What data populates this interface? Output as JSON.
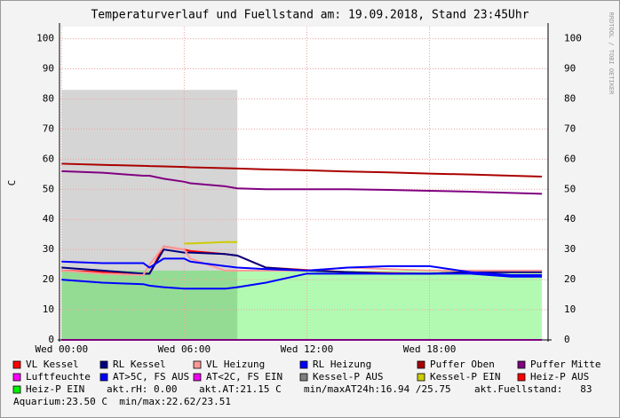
{
  "chart_data": {
    "type": "line",
    "title": "Temperaturverlauf und Fuellstand am: 19.09.2018, Stand 23:45Uhr",
    "y_label": "C",
    "watermark": "RRDTOOL / TOBI OETIKER",
    "x": [
      0,
      2,
      4,
      4.3,
      5,
      6,
      6.3,
      8,
      8.6,
      10,
      12,
      14,
      16,
      18,
      20,
      22,
      23.5
    ],
    "xlim": [
      -0.1,
      23.8
    ],
    "xticks": [
      {
        "value": 0,
        "label": "Wed 00:00"
      },
      {
        "value": 6,
        "label": "Wed 06:00"
      },
      {
        "value": 12,
        "label": "Wed 12:00"
      },
      {
        "value": 18,
        "label": "Wed 18:00"
      }
    ],
    "ylim": [
      0,
      104
    ],
    "yticks": [
      0,
      10,
      20,
      30,
      40,
      50,
      60,
      70,
      80,
      90,
      100
    ],
    "grid": true,
    "series": [
      {
        "name": "VL Kessel",
        "color": "#ff0000",
        "style": "line",
        "values": [
          23,
          22.5,
          22,
          22,
          31,
          30,
          29.5,
          28.5,
          28,
          24,
          23.2,
          22.5,
          22.2,
          22,
          22.5,
          22.5,
          22.5
        ]
      },
      {
        "name": "RL Kessel",
        "color": "#000080",
        "style": "line",
        "values": [
          24,
          23,
          22,
          22,
          30,
          29,
          29,
          28.5,
          28,
          24,
          23,
          22.5,
          22,
          22,
          22.5,
          22.5,
          22.5
        ]
      },
      {
        "name": "VL Heizung",
        "color": "#ff9999",
        "style": "line",
        "values": [
          23,
          22,
          21.5,
          25,
          31,
          30,
          27,
          23,
          23,
          23,
          23,
          24,
          23.5,
          23,
          23,
          23,
          23
        ]
      },
      {
        "name": "RL Heizung",
        "color": "#0000ff",
        "style": "line",
        "values": [
          26,
          25.5,
          25.5,
          24,
          27,
          27,
          26,
          24.5,
          24,
          23.5,
          23,
          24,
          24.5,
          24.5,
          22.5,
          21.5,
          21.5
        ]
      },
      {
        "name": "Puffer Oben",
        "color": "#aa0000",
        "style": "line",
        "values": [
          58.5,
          58.1,
          57.8,
          57.7,
          57.6,
          57.4,
          57.3,
          57,
          56.9,
          56.6,
          56.3,
          55.9,
          55.6,
          55.2,
          54.9,
          54.5,
          54.2
        ]
      },
      {
        "name": "Puffer Mitte",
        "color": "#800080",
        "style": "line",
        "values": [
          56,
          55.5,
          54.5,
          54.5,
          53.5,
          52.5,
          52,
          51,
          50.3,
          50,
          50,
          50,
          49.8,
          49.5,
          49.2,
          48.8,
          48.5
        ]
      },
      {
        "name": "Luftfeuchte",
        "color": "#ff00ff",
        "style": "line",
        "values": [
          0,
          0,
          0,
          0,
          0,
          0,
          0,
          0,
          0,
          0,
          0,
          0,
          0,
          0,
          0,
          0,
          0
        ]
      },
      {
        "name": "AT>5C, FS AUS",
        "color": "#0000ff",
        "style": "line",
        "values": [
          20,
          19,
          18.5,
          18,
          17.5,
          17,
          17,
          17,
          17.5,
          19,
          22,
          22,
          22,
          22,
          22,
          21,
          21
        ]
      },
      {
        "name": "AT<2C, FS EIN",
        "color": "#ee00ee",
        "style": "line",
        "values": [
          null,
          null,
          null,
          null,
          null,
          null,
          null,
          null,
          null,
          null,
          null,
          null,
          null,
          null,
          null,
          null,
          null
        ]
      },
      {
        "name": "Kessel-P AUS",
        "color": "#808080",
        "style": "area",
        "values": [
          83,
          83,
          83,
          83,
          83,
          83,
          83,
          83,
          83,
          null,
          null,
          null,
          null,
          null,
          null,
          null,
          null
        ]
      },
      {
        "name": "Kessel-P EIN",
        "color": "#cccc00",
        "style": "line",
        "values": [
          null,
          null,
          null,
          null,
          null,
          32,
          32,
          32.5,
          32.5,
          null,
          null,
          null,
          null,
          null,
          null,
          null,
          null
        ]
      },
      {
        "name": "Heiz-P AUS",
        "color": "#ff0000",
        "style": "line",
        "values": [
          null,
          null,
          null,
          null,
          null,
          null,
          null,
          null,
          null,
          null,
          null,
          null,
          null,
          null,
          null,
          null,
          null
        ]
      },
      {
        "name": "Heiz-P EIN",
        "color": "#00ee00",
        "style": "area",
        "values": [
          23,
          23,
          23,
          23,
          23,
          23,
          23,
          23,
          23,
          23,
          23,
          23,
          23,
          23,
          23,
          23,
          23
        ]
      }
    ],
    "annotations": [
      "akt.rH: 0.00",
      "akt.AT:21.15 C",
      "min/maxAT24h:16.94 /25.75",
      "akt.Fuellstand:   83",
      "Aquarium:23.50 C  min/max:22.62/23.51"
    ]
  }
}
